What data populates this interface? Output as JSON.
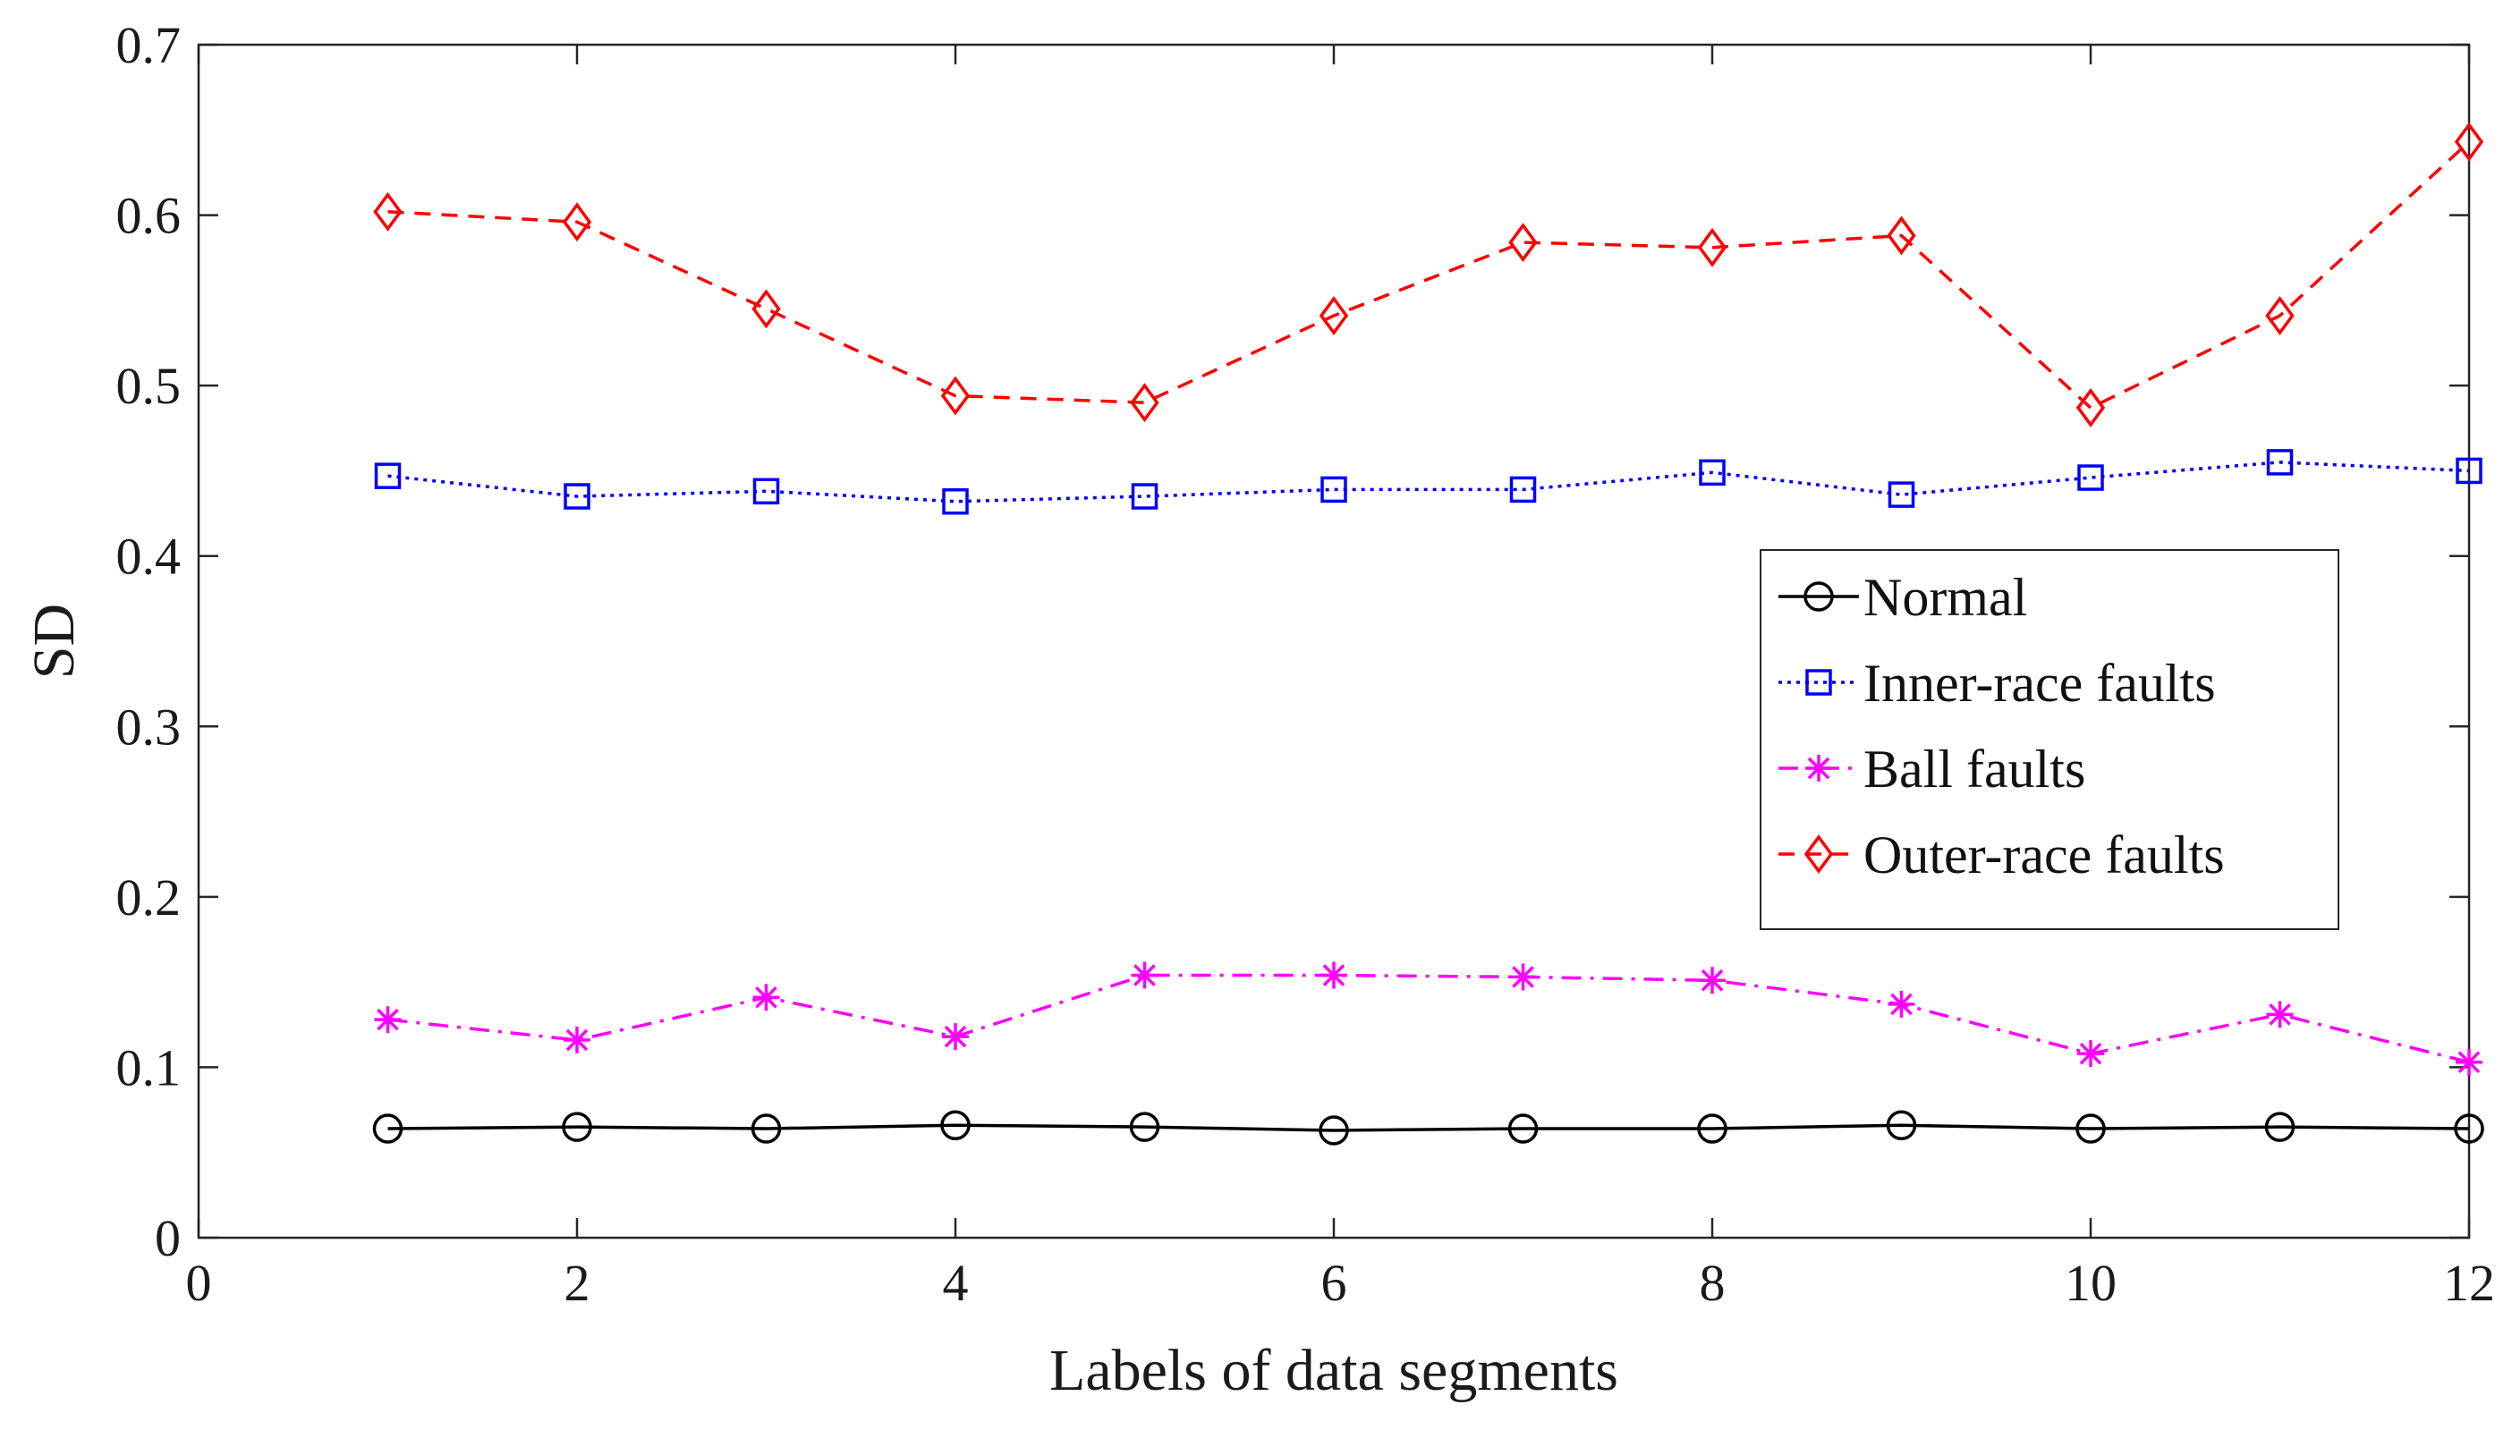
{
  "chart_data": {
    "type": "line",
    "title": "",
    "xlabel": "Labels of data segments",
    "ylabel": "SD",
    "xlim": [
      0,
      12
    ],
    "ylim": [
      0,
      0.7
    ],
    "xticks": [
      0,
      2,
      4,
      6,
      8,
      10,
      12
    ],
    "yticks": [
      0,
      0.1,
      0.2,
      0.3,
      0.4,
      0.5,
      0.6,
      0.7
    ],
    "xtick_labels": [
      "0",
      "2",
      "4",
      "6",
      "8",
      "10",
      "12"
    ],
    "ytick_labels": [
      "0",
      "0.1",
      "0.2",
      "0.3",
      "0.4",
      "0.5",
      "0.6",
      "0.7"
    ],
    "grid": false,
    "legend_position": "right-middle",
    "x": [
      1,
      2,
      3,
      4,
      5,
      6,
      7,
      8,
      9,
      10,
      11,
      12
    ],
    "series": [
      {
        "name": "Normal",
        "color": "#000000",
        "marker": "circle",
        "line_style": "solid",
        "values": [
          0.064,
          0.065,
          0.064,
          0.066,
          0.065,
          0.063,
          0.064,
          0.064,
          0.066,
          0.064,
          0.065,
          0.064
        ]
      },
      {
        "name": "Inner-race faults",
        "color": "#0000ff",
        "marker": "square",
        "line_style": "dotted",
        "values": [
          0.447,
          0.435,
          0.438,
          0.432,
          0.435,
          0.439,
          0.439,
          0.449,
          0.436,
          0.446,
          0.455,
          0.45
        ]
      },
      {
        "name": "Ball faults",
        "color": "#ff00ff",
        "marker": "asterisk",
        "line_style": "dashdot",
        "values": [
          0.128,
          0.116,
          0.141,
          0.118,
          0.154,
          0.154,
          0.153,
          0.151,
          0.137,
          0.108,
          0.131,
          0.103
        ]
      },
      {
        "name": "Outer-race faults",
        "color": "#ff0000",
        "marker": "diamond",
        "line_style": "dashed",
        "values": [
          0.602,
          0.596,
          0.545,
          0.494,
          0.49,
          0.541,
          0.584,
          0.581,
          0.588,
          0.487,
          0.541,
          0.643
        ]
      }
    ]
  }
}
